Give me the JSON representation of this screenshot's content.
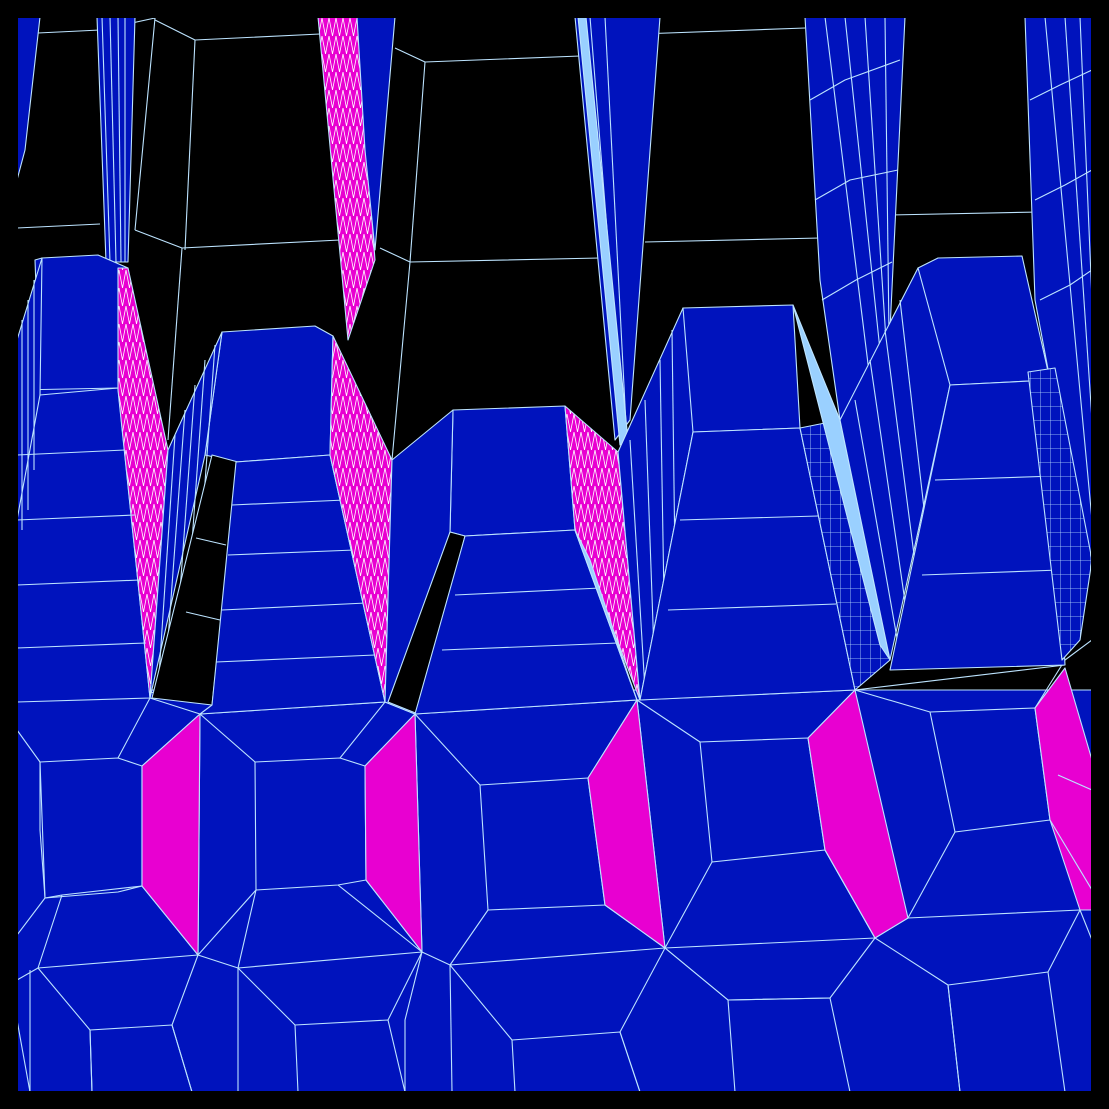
{
  "scene": {
    "kind": "wireframe-3d-render",
    "colors": {
      "background": "#000000",
      "frame": "#000000",
      "face_blue": "#0013bd",
      "face_magenta": "#e800d1",
      "face_light_blue": "#9ad0ff",
      "edge_light": "#bde4ff"
    }
  }
}
